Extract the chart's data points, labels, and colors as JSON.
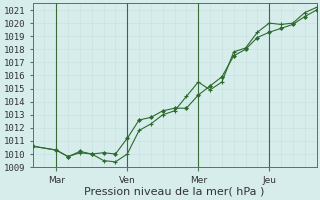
{
  "background_color": "#d6edec",
  "grid_color_major": "#b0cccc",
  "grid_color_minor": "#c8e0e0",
  "line_color": "#2d6a2d",
  "marker_color": "#2d6a2d",
  "title": "Pression niveau de la mer( hPa )",
  "ylim": [
    1009,
    1021.5
  ],
  "yticks": [
    1009,
    1010,
    1011,
    1012,
    1013,
    1014,
    1015,
    1016,
    1017,
    1018,
    1019,
    1020,
    1021
  ],
  "xtick_labels": [
    "Mar",
    "Ven",
    "Mer",
    "Jeu"
  ],
  "xtick_positions": [
    12,
    48,
    84,
    120
  ],
  "xlim": [
    0,
    144
  ],
  "series1_x": [
    0,
    12,
    18,
    24,
    30,
    36,
    42,
    48,
    54,
    60,
    66,
    72,
    78,
    84,
    90,
    96,
    102,
    108,
    114,
    120,
    126,
    132,
    138,
    144
  ],
  "series1_y": [
    1010.6,
    1010.3,
    1009.8,
    1010.1,
    1010.0,
    1009.5,
    1009.4,
    1010.0,
    1011.8,
    1012.3,
    1013.0,
    1013.3,
    1014.4,
    1015.5,
    1014.9,
    1015.5,
    1017.8,
    1018.1,
    1019.3,
    1020.0,
    1019.9,
    1020.0,
    1020.8,
    1021.2
  ],
  "series2_x": [
    0,
    12,
    18,
    24,
    30,
    36,
    42,
    48,
    54,
    60,
    66,
    72,
    78,
    84,
    90,
    96,
    102,
    108,
    114,
    120,
    126,
    132,
    138,
    144
  ],
  "series2_y": [
    1010.6,
    1010.3,
    1009.8,
    1010.2,
    1010.0,
    1010.1,
    1010.0,
    1011.2,
    1012.6,
    1012.8,
    1013.3,
    1013.5,
    1013.5,
    1014.5,
    1015.2,
    1015.9,
    1017.5,
    1018.0,
    1018.9,
    1019.3,
    1019.6,
    1019.9,
    1020.5,
    1021.0
  ],
  "vline_positions": [
    12,
    48,
    84,
    120
  ],
  "vline_color": "#3a6b3a",
  "ylabel_fontsize": 8,
  "tick_fontsize": 6.5,
  "spine_color": "#557755"
}
